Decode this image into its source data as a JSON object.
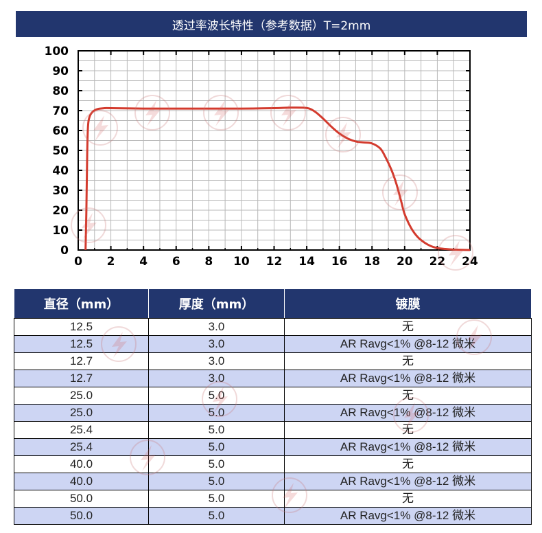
{
  "title": "透过率波长特性（参考数据）T=2mm",
  "chart_data": {
    "type": "line",
    "xlim": [
      0,
      24
    ],
    "ylim": [
      0,
      100
    ],
    "x_ticks": [
      "0",
      "2",
      "4",
      "6",
      "8",
      "10",
      "12",
      "14",
      "16",
      "18",
      "20",
      "22",
      "24"
    ],
    "y_ticks": [
      "0",
      "10",
      "20",
      "30",
      "40",
      "50",
      "60",
      "70",
      "80",
      "90",
      "100"
    ],
    "grid": true,
    "line_color": "#d33b2e",
    "series": [
      {
        "x": [
          0.45,
          0.5,
          0.55,
          0.6,
          0.7,
          0.9,
          1.2,
          1.6,
          2.0,
          4.0,
          6.0,
          8.0,
          10.0,
          12.0,
          13.0,
          14.0,
          14.5,
          15.0,
          15.5,
          16.0,
          16.5,
          17.0,
          17.5,
          18.0,
          18.5,
          18.8,
          19.2,
          19.5,
          19.8,
          20.0,
          20.4,
          20.8,
          21.2,
          21.6,
          22.0,
          22.5,
          23.0,
          23.5,
          24.0
        ],
        "y": [
          0,
          20,
          48,
          62,
          67,
          69.5,
          70.8,
          71.2,
          71.2,
          71,
          71,
          71,
          71,
          71.2,
          71.5,
          71.3,
          69.5,
          66,
          62,
          58.5,
          56,
          54.5,
          54,
          53.5,
          51,
          47,
          40,
          33,
          24,
          18,
          11,
          6.5,
          3.8,
          2,
          1,
          0.5,
          0.2,
          0.1,
          0
        ]
      }
    ]
  },
  "table": {
    "headers": [
      "直径（mm）",
      "厚度（mm）",
      "镀膜"
    ],
    "rows": [
      [
        "12.5",
        "3.0",
        "无"
      ],
      [
        "12.5",
        "3.0",
        "AR Ravg<1% @8-12 微米"
      ],
      [
        "12.7",
        "3.0",
        "无"
      ],
      [
        "12.7",
        "3.0",
        "AR Ravg<1% @8-12 微米"
      ],
      [
        "25.0",
        "5.0",
        "无"
      ],
      [
        "25.0",
        "5.0",
        "AR Ravg<1% @8-12 微米"
      ],
      [
        "25.4",
        "5.0",
        "无"
      ],
      [
        "25.4",
        "5.0",
        "AR Ravg<1% @8-12 微米"
      ],
      [
        "40.0",
        "5.0",
        "无"
      ],
      [
        "40.0",
        "5.0",
        "AR Ravg<1% @8-12 微米"
      ],
      [
        "50.0",
        "5.0",
        "无"
      ],
      [
        "50.0",
        "5.0",
        "AR Ravg<1% @8-12 微米"
      ]
    ]
  },
  "colors": {
    "header_bg": "#22366e",
    "alt_row_bg": "#cdd5f3",
    "grid": "#b8b8b8",
    "line": "#d33b2e"
  },
  "watermark_icon": "lightning-circle-logo"
}
